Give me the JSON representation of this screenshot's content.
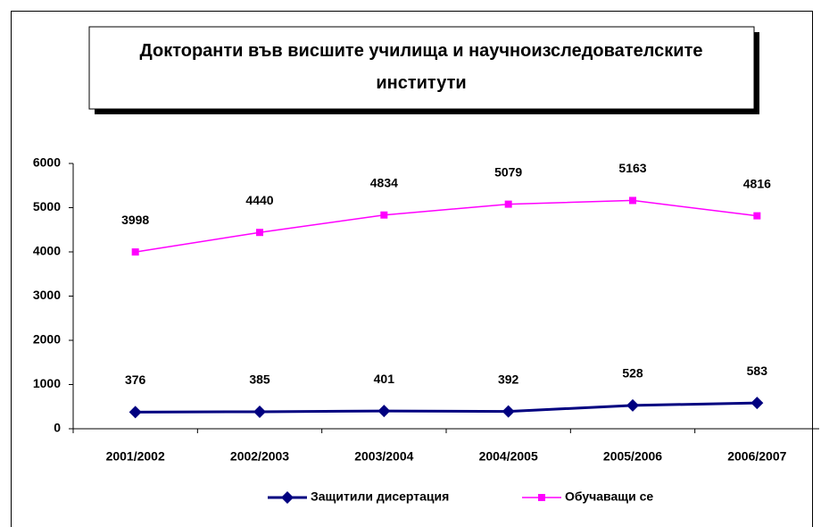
{
  "chart_data": {
    "type": "line",
    "title": "Докторанти във висшите училища и научноизследователските институти",
    "categories": [
      "2001/2002",
      "2002/2003",
      "2003/2004",
      "2004/2005",
      "2005/2006",
      "2006/2007"
    ],
    "series": [
      {
        "name": "Защитили дисертация",
        "color": "#000080",
        "marker": "diamond",
        "values": [
          376,
          385,
          401,
          392,
          528,
          583
        ]
      },
      {
        "name": "Обучаващи се",
        "color": "#ff00ff",
        "marker": "square",
        "values": [
          3998,
          4440,
          4834,
          5079,
          5163,
          4816
        ]
      }
    ],
    "ylim": [
      0,
      6000
    ],
    "yticks": [
      0,
      1000,
      2000,
      3000,
      4000,
      5000,
      6000
    ],
    "grid": false,
    "legend": "bottom"
  }
}
